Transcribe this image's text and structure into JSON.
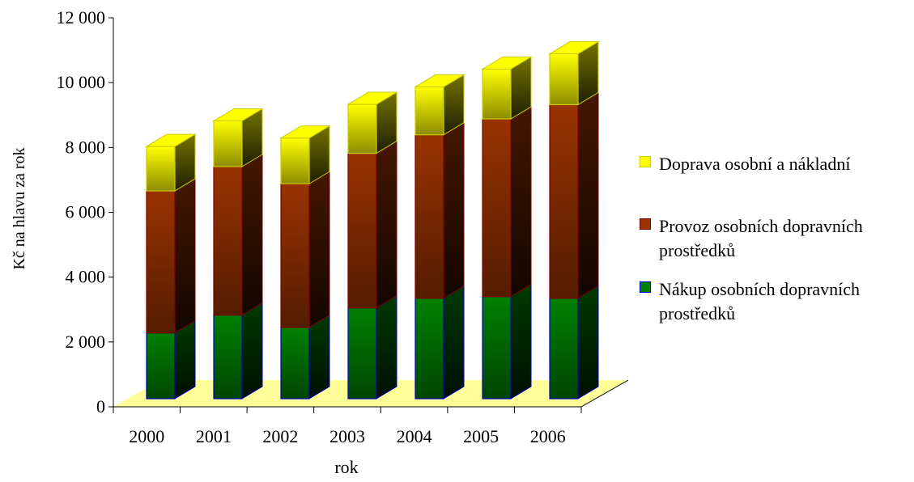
{
  "chart_data": {
    "type": "bar",
    "stacked": true,
    "three_d": true,
    "categories": [
      "2000",
      "2001",
      "2002",
      "2003",
      "2004",
      "2005",
      "2006"
    ],
    "series": [
      {
        "name": "Nákup osobních dopravních prostředků",
        "values": [
          2030,
          2580,
          2200,
          2800,
          3100,
          3150,
          3100
        ],
        "color": "#008000",
        "edge": "#0000cc"
      },
      {
        "name": "Provoz osobních dopravních prostředků",
        "values": [
          4380,
          4580,
          4430,
          4770,
          5040,
          5480,
          5970
        ],
        "color": "#993300",
        "edge": "#800000"
      },
      {
        "name": "Doprava osobní a nákladní",
        "values": [
          1370,
          1410,
          1410,
          1510,
          1480,
          1540,
          1570
        ],
        "color": "#ffff00",
        "edge": "#cccc00"
      }
    ],
    "xlabel": "rok",
    "ylabel": "Kč na hlavu za rok",
    "ylim": [
      0,
      12000
    ],
    "yticks": [
      "0",
      "2 000",
      "4 000",
      "6 000",
      "8 000",
      "10 000",
      "12 000"
    ],
    "grid": false,
    "legend_position": "right",
    "floor_color": "#ffff99"
  }
}
